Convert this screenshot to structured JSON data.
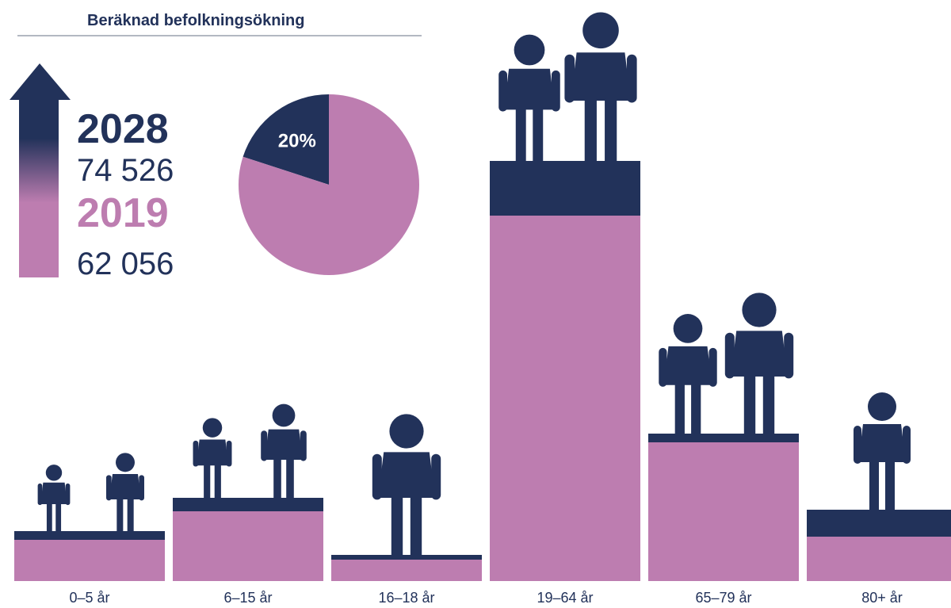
{
  "chart_data": [
    {
      "type": "pie",
      "values": [
        20,
        80
      ],
      "value_labels": [
        "20%",
        null
      ],
      "colors": [
        "#22325a",
        "#bd7db0"
      ]
    },
    {
      "type": "bar",
      "title": "Beräknad befolkningsökning",
      "categories": [
        "0–5 år",
        "6–15 år",
        "16–18 år",
        "19–64 år",
        "65–79 år",
        "80+ år"
      ],
      "series": [
        {
          "name": "2028",
          "color": "#22325a",
          "total": {
            "value": 74526,
            "label": "74 526"
          },
          "values": [
            63,
            105,
            33,
            530,
            186,
            90
          ]
        },
        {
          "name": "2019",
          "color": "#bd7db0",
          "total": {
            "value": 62056,
            "label": "62 056"
          },
          "values": [
            52,
            88,
            27,
            461,
            175,
            56
          ]
        }
      ],
      "ylim": [
        0,
        530
      ]
    }
  ]
}
